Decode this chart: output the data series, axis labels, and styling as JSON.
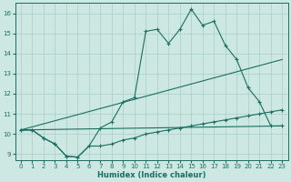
{
  "xlabel": "Humidex (Indice chaleur)",
  "xlim": [
    -0.5,
    23.5
  ],
  "ylim": [
    8.7,
    16.5
  ],
  "yticks": [
    9,
    10,
    11,
    12,
    13,
    14,
    15,
    16
  ],
  "xticks": [
    0,
    1,
    2,
    3,
    4,
    5,
    6,
    7,
    8,
    9,
    10,
    11,
    12,
    13,
    14,
    15,
    16,
    17,
    18,
    19,
    20,
    21,
    22,
    23
  ],
  "background_color": "#cde8e2",
  "grid_color": "#a8cec8",
  "line_color": "#1a6e62",
  "lines": [
    {
      "x": [
        0,
        1,
        2,
        3,
        4,
        5,
        6,
        7,
        8,
        9,
        10,
        11,
        12,
        13,
        14,
        15,
        16,
        17,
        18,
        19,
        20,
        21,
        22,
        23
      ],
      "y": [
        10.2,
        10.2,
        9.8,
        9.5,
        8.9,
        8.85,
        9.4,
        10.3,
        10.6,
        11.6,
        11.8,
        15.1,
        15.2,
        14.5,
        15.2,
        16.2,
        15.4,
        15.6,
        14.4,
        13.7,
        12.3,
        11.6,
        10.4,
        10.4
      ],
      "has_markers": true
    },
    {
      "x": [
        0,
        1,
        2,
        3,
        4,
        5,
        6,
        7,
        8,
        9,
        10,
        11,
        12,
        13,
        14,
        15,
        16,
        17,
        18,
        19,
        20,
        21,
        22,
        23
      ],
      "y": [
        10.2,
        10.2,
        9.8,
        9.5,
        8.9,
        8.85,
        9.4,
        9.4,
        9.5,
        9.7,
        9.8,
        10.0,
        10.1,
        10.2,
        10.3,
        10.4,
        10.5,
        10.6,
        10.7,
        10.8,
        10.9,
        11.0,
        11.1,
        11.2
      ],
      "has_markers": true
    },
    {
      "comment": "diagonal line from (0,10.2) to (23, 13.7)",
      "x": [
        0,
        23
      ],
      "y": [
        10.2,
        13.7
      ],
      "has_markers": false
    },
    {
      "x": [
        0,
        23
      ],
      "y": [
        10.2,
        10.4
      ],
      "has_markers": false
    }
  ]
}
